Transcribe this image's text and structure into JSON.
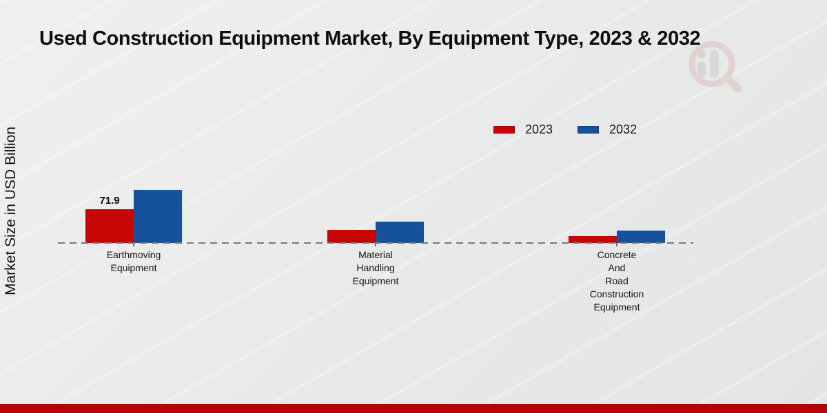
{
  "title": "Used Construction Equipment Market, By Equipment Type, 2023 & 2032",
  "ylabel": "Market Size in USD Billion",
  "branding": {
    "icon": "magnifier-bar-chart-watermark"
  },
  "footer": {
    "band_color": "#b30505"
  },
  "chart_data": {
    "type": "bar",
    "title": "Used Construction Equipment Market, By Equipment Type, 2023 & 2032",
    "xlabel": "",
    "ylabel": "Market Size in USD Billion",
    "categories": [
      "Earthmoving\nEquipment",
      "Material\nHandling\nEquipment",
      "Concrete\nAnd\nRoad\nConstruction\nEquipment"
    ],
    "series": [
      {
        "name": "2023",
        "color": "#c70505",
        "values": [
          71.9,
          28.5,
          15.5
        ]
      },
      {
        "name": "2032",
        "color": "#15519c",
        "values": [
          114,
          46.5,
          26
        ]
      }
    ],
    "data_labels": {
      "2023": [
        "71.9",
        null,
        null
      ],
      "2032": [
        null,
        null,
        null
      ]
    },
    "baseline_value": 0,
    "grid": false,
    "legend_position": "upper-right",
    "axis_line_style": "dashed",
    "note": "Only the 2023 Earthmoving Equipment bar shows a printed value (71.9); other values estimated from bar heights."
  }
}
